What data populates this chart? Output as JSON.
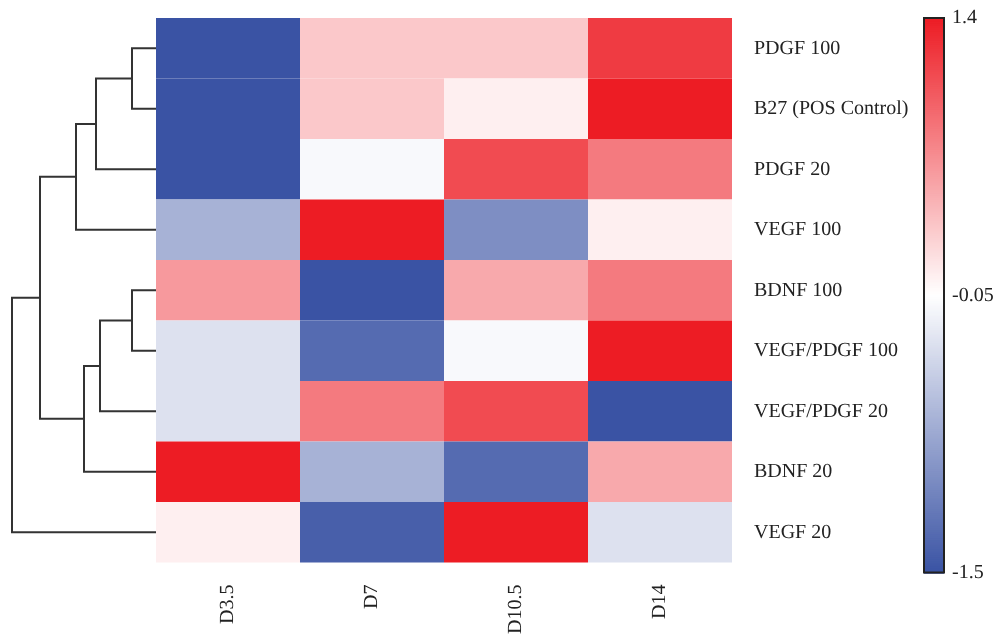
{
  "chart_data": {
    "type": "heatmap",
    "categories": [
      "D3.5",
      "D7",
      "D10.5",
      "D14"
    ],
    "y_categories": [
      "PDGF 100",
      "B27 (POS Control)",
      "PDGF 20",
      "VEGF 100",
      "BDNF 100",
      "VEGF/PDGF 100",
      "VEGF/PDGF 20",
      "BDNF 20",
      "VEGF 20"
    ],
    "cells": [
      [
        -1.5,
        0.3,
        0.3,
        1.2
      ],
      [
        -1.5,
        0.3,
        0.05,
        1.4
      ],
      [
        -1.5,
        -0.1,
        1.1,
        0.8
      ],
      [
        -0.7,
        1.4,
        -1.0,
        0.05
      ],
      [
        0.6,
        -1.5,
        0.5,
        0.8
      ],
      [
        -0.3,
        -1.3,
        -0.1,
        1.4
      ],
      [
        -0.3,
        0.8,
        1.1,
        -1.5
      ],
      [
        1.4,
        -0.7,
        -1.3,
        0.5
      ],
      [
        0.05,
        -1.4,
        1.4,
        -0.3
      ]
    ],
    "clim": [
      -1.5,
      1.4
    ],
    "cticks": [
      1.4,
      -0.05,
      -1.5
    ]
  }
}
